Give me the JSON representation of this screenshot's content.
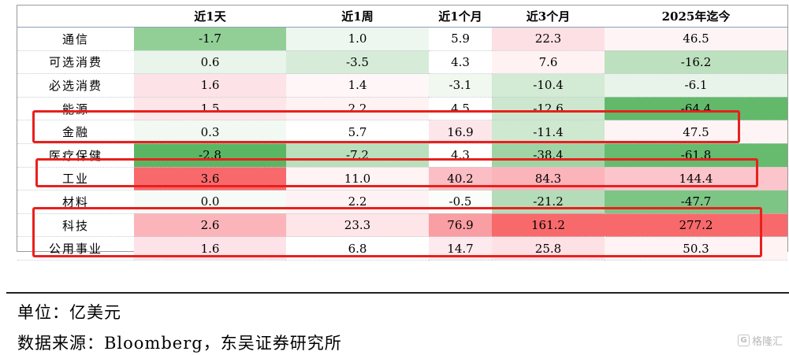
{
  "table": {
    "headers": [
      "",
      "近1天",
      "近1周",
      "近1个月",
      "近3个月",
      "2025年迄今"
    ],
    "rows": [
      {
        "sector": "通信",
        "values": [
          "-1.7",
          "1.0",
          "5.9",
          "22.3",
          "46.5"
        ],
        "colors": [
          "#92cf96",
          "#eef7ef",
          "#ffffff",
          "#fde0e4",
          "#fff4f5"
        ]
      },
      {
        "sector": "可选消费",
        "values": [
          "0.6",
          "-3.5",
          "4.3",
          "7.6",
          "-16.2"
        ],
        "colors": [
          "#e9f4ea",
          "#d6ecd8",
          "#ffffff",
          "#fff2f3",
          "#bde0bf"
        ]
      },
      {
        "sector": "必选消费",
        "values": [
          "1.6",
          "1.4",
          "-3.1",
          "-10.4",
          "-6.1"
        ],
        "colors": [
          "#fde3e7",
          "#fff6f7",
          "#f0f8f0",
          "#d3ead4",
          "#e8f4e9"
        ]
      },
      {
        "sector": "能源",
        "values": [
          "1.5",
          "2.2",
          "4.5",
          "-12.6",
          "-64.4"
        ],
        "colors": [
          "#fde5e8",
          "#fff2f3",
          "#ffffff",
          "#cce7ce",
          "#62b96a"
        ]
      },
      {
        "sector": "金融",
        "values": [
          "0.3",
          "5.7",
          "16.9",
          "-11.4",
          "47.5"
        ],
        "colors": [
          "#f2f9f2",
          "#ffffff",
          "#fde6ea",
          "#cfe8d0",
          "#fff4f5"
        ]
      },
      {
        "sector": "医疗保健",
        "values": [
          "-2.8",
          "-7.2",
          "4.3",
          "-38.4",
          "-61.8"
        ],
        "colors": [
          "#5bb664",
          "#b9dfbc",
          "#ffffff",
          "#a0d4a4",
          "#66bb6e"
        ]
      },
      {
        "sector": "工业",
        "values": [
          "3.6",
          "11.0",
          "40.2",
          "84.3",
          "144.4"
        ],
        "colors": [
          "#f8696b",
          "#fff3f4",
          "#fbbec4",
          "#fbb4b9",
          "#fcc5cb"
        ]
      },
      {
        "sector": "材料",
        "values": [
          "0.0",
          "2.2",
          "-0.5",
          "-21.2",
          "-47.7"
        ],
        "colors": [
          "#f6fbf6",
          "#fff2f3",
          "#fafdfa",
          "#b5dcb8",
          "#7dc584"
        ]
      },
      {
        "sector": "科技",
        "values": [
          "2.6",
          "23.3",
          "76.9",
          "161.2",
          "277.2"
        ],
        "colors": [
          "#fbb5ba",
          "#fde5e8",
          "#f99ea3",
          "#f8696b",
          "#f8696b"
        ]
      },
      {
        "sector": "公用事业",
        "values": [
          "1.6",
          "6.8",
          "14.7",
          "25.8",
          "50.3"
        ],
        "colors": [
          "#fde3e7",
          "#ffffff",
          "#fdeaee",
          "#fde1e5",
          "#fff3f4"
        ]
      }
    ]
  },
  "notes": {
    "unit": "单位：亿美元",
    "source": "数据来源：Bloomberg，东吴证券研究所"
  },
  "watermark": {
    "icon": "G",
    "text": "格隆汇"
  },
  "colors": {
    "highlight": "#e8201d",
    "header_rule": "#8aa0b8"
  }
}
